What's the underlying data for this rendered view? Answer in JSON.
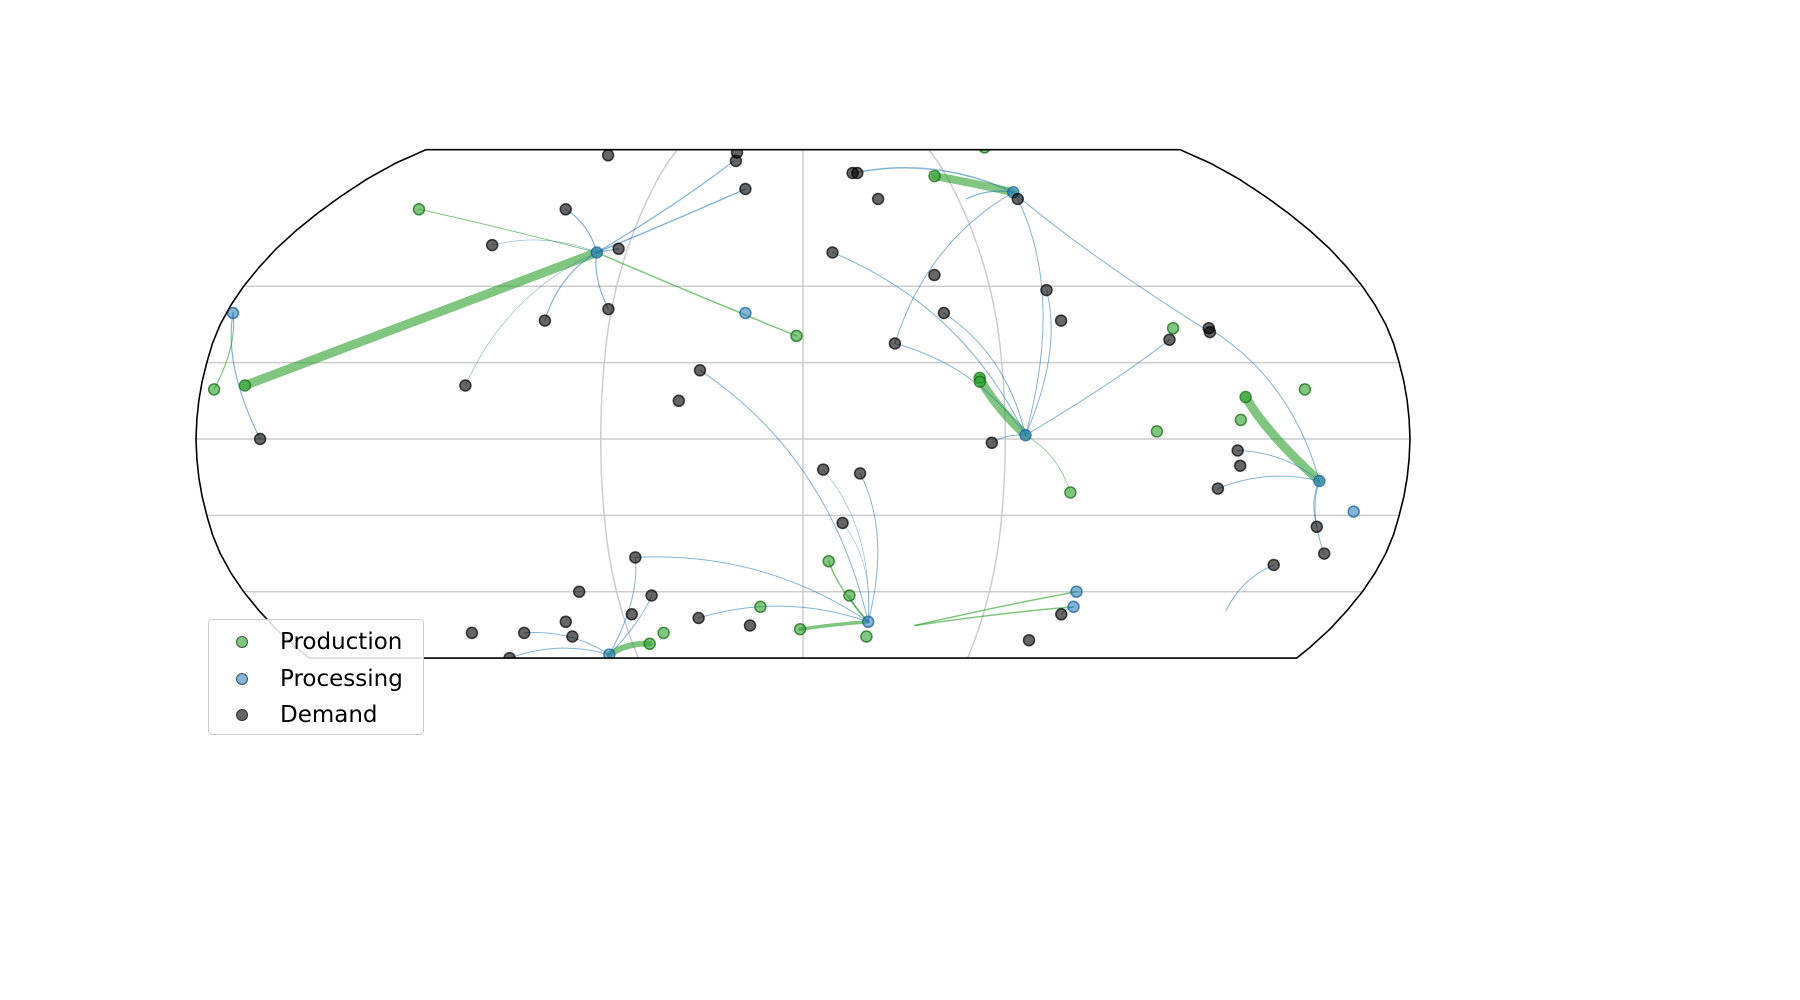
{
  "colors": {
    "production": "#2ca02c",
    "processing": "#1f77b4",
    "demand": "#000000",
    "graticule": "#cccccc",
    "outline": "#000000"
  },
  "legend": {
    "items": [
      {
        "key": "production",
        "label": "Production",
        "color": "#2ca02c"
      },
      {
        "key": "processing",
        "label": "Processing",
        "color": "#1f77b4"
      },
      {
        "key": "demand",
        "label": "Demand",
        "color": "#000000"
      }
    ]
  },
  "map": {
    "projection": "Robinson",
    "lon_range": [
      -180,
      180
    ],
    "lat_range": [
      -58,
      80
    ],
    "graticule_lon": [
      -60,
      0,
      60
    ],
    "graticule_lat": [
      -40,
      -20,
      0,
      20,
      40
    ]
  },
  "nodes": {
    "production": [
      [
        -144,
        61
      ],
      [
        -176,
        13
      ],
      [
        -167,
        14
      ],
      [
        -2,
        27
      ],
      [
        -48,
        -51
      ],
      [
        88,
        81
      ],
      [
        -54,
        -54
      ],
      [
        114,
        29
      ],
      [
        53,
        16
      ],
      [
        132,
        11
      ],
      [
        8,
        -32
      ],
      [
        15,
        -41
      ],
      [
        -14,
        -44
      ],
      [
        150,
        13
      ],
      [
        105,
        2
      ],
      [
        130,
        5
      ],
      [
        -1,
        -50
      ],
      [
        22,
        -52
      ],
      [
        55,
        71
      ],
      [
        80,
        -14
      ],
      [
        53,
        15
      ]
    ],
    "processing": [
      [
        -70,
        49
      ],
      [
        -178,
        33
      ],
      [
        -18,
        33
      ],
      [
        166,
        -19
      ],
      [
        83,
        66
      ],
      [
        22,
        -48
      ],
      [
        89,
        -44
      ],
      [
        66,
        1
      ],
      [
        154,
        -11
      ],
      [
        88,
        -40
      ],
      [
        -70,
        -57
      ]
    ],
    "demand": [
      [
        -90,
        78
      ],
      [
        -89,
        61
      ],
      [
        -107,
        51
      ],
      [
        -63,
        50
      ],
      [
        -61,
        34
      ],
      [
        -80,
        31
      ],
      [
        -101,
        14
      ],
      [
        -31,
        18
      ],
      [
        -37,
        10
      ],
      [
        -31,
        79
      ],
      [
        -30,
        76
      ],
      [
        -23,
        67
      ],
      [
        21,
        72
      ],
      [
        23,
        72
      ],
      [
        29,
        64
      ],
      [
        10,
        49
      ],
      [
        43,
        43
      ],
      [
        44,
        33
      ],
      [
        28,
        25
      ],
      [
        83,
        64
      ],
      [
        78,
        39
      ],
      [
        80,
        31
      ],
      [
        112,
        26
      ],
      [
        125,
        29
      ],
      [
        125,
        28
      ],
      [
        56,
        -1
      ],
      [
        129,
        -3
      ],
      [
        6,
        -8
      ],
      [
        17,
        -9
      ],
      [
        12,
        -22
      ],
      [
        124,
        -13
      ],
      [
        130,
        -7
      ],
      [
        156,
        -23
      ],
      [
        161,
        -30
      ],
      [
        147,
        -33
      ],
      [
        -52,
        -31
      ],
      [
        -72,
        -40
      ],
      [
        -49,
        -41
      ],
      [
        -80,
        -48
      ],
      [
        -96,
        -51
      ],
      [
        -80,
        -52
      ],
      [
        -114,
        -51
      ],
      [
        -107,
        -58
      ],
      [
        -35,
        -47
      ],
      [
        -57,
        -46
      ],
      [
        -18,
        -49
      ],
      [
        14,
        -60
      ],
      [
        86,
        -46
      ],
      [
        79,
        -53
      ],
      [
        -161,
        0
      ]
    ]
  },
  "flows": [
    {
      "kind": "production",
      "from": [
        -167,
        14
      ],
      "to": [
        -70,
        49
      ],
      "weight": 9
    },
    {
      "kind": "production",
      "from": [
        -144,
        61
      ],
      "to": [
        -70,
        49
      ],
      "weight": 1
    },
    {
      "kind": "production",
      "from": [
        -70,
        49
      ],
      "to": [
        -2,
        27
      ],
      "weight": 1.5
    },
    {
      "kind": "production",
      "from": [
        -176,
        13
      ],
      "to": [
        -178,
        33
      ],
      "weight": 1.2
    },
    {
      "kind": "production",
      "from": [
        53,
        16
      ],
      "to": [
        66,
        1
      ],
      "weight": 9
    },
    {
      "kind": "production",
      "from": [
        132,
        11
      ],
      "to": [
        154,
        -11
      ],
      "weight": 9
    },
    {
      "kind": "production",
      "from": [
        55,
        71
      ],
      "to": [
        83,
        66
      ],
      "weight": 8
    },
    {
      "kind": "production",
      "from": [
        -54,
        -54
      ],
      "to": [
        -70,
        -57
      ],
      "weight": 6
    },
    {
      "kind": "production",
      "from": [
        -1,
        -50
      ],
      "to": [
        22,
        -48
      ],
      "weight": 3.5
    },
    {
      "kind": "production",
      "from": [
        8,
        -32
      ],
      "to": [
        22,
        -48
      ],
      "weight": 1.5
    },
    {
      "kind": "production",
      "from": [
        15,
        -41
      ],
      "to": [
        22,
        -48
      ],
      "weight": 1.5
    },
    {
      "kind": "production",
      "from": [
        38,
        -49
      ],
      "to": [
        89,
        -44
      ],
      "weight": 1.5
    },
    {
      "kind": "production",
      "from": [
        38,
        -49
      ],
      "to": [
        88,
        -40
      ],
      "weight": 1.5
    },
    {
      "kind": "production",
      "from": [
        80,
        -14
      ],
      "to": [
        66,
        1
      ],
      "weight": 0.8
    },
    {
      "kind": "processing",
      "from": [
        -70,
        49
      ],
      "to": [
        -89,
        61
      ],
      "weight": 1.2
    },
    {
      "kind": "processing",
      "from": [
        -70,
        49
      ],
      "to": [
        -63,
        50
      ],
      "weight": 1.2
    },
    {
      "kind": "processing",
      "from": [
        -70,
        49
      ],
      "to": [
        -61,
        34
      ],
      "weight": 1.2
    },
    {
      "kind": "processing",
      "from": [
        -70,
        49
      ],
      "to": [
        -80,
        31
      ],
      "weight": 1.2
    },
    {
      "kind": "processing",
      "from": [
        -70,
        49
      ],
      "to": [
        -31,
        76
      ],
      "weight": 1.2
    },
    {
      "kind": "processing",
      "from": [
        -70,
        49
      ],
      "to": [
        -23,
        67
      ],
      "weight": 1.5
    },
    {
      "kind": "processing",
      "from": [
        -70,
        49
      ],
      "to": [
        -101,
        14
      ],
      "weight": 0.6
    },
    {
      "kind": "processing",
      "from": [
        -70,
        49
      ],
      "to": [
        -107,
        51
      ],
      "weight": 0.6
    },
    {
      "kind": "processing",
      "from": [
        -178,
        33
      ],
      "to": [
        -161,
        0
      ],
      "weight": 1.2
    },
    {
      "kind": "processing",
      "from": [
        83,
        66
      ],
      "to": [
        21,
        72
      ],
      "weight": 1.5
    },
    {
      "kind": "processing",
      "from": [
        83,
        66
      ],
      "to": [
        28,
        25
      ],
      "weight": 1
    },
    {
      "kind": "processing",
      "from": [
        83,
        66
      ],
      "to": [
        63,
        64
      ],
      "weight": 1.2
    },
    {
      "kind": "processing",
      "from": [
        83,
        66
      ],
      "to": [
        125,
        28
      ],
      "weight": 1
    },
    {
      "kind": "processing",
      "from": [
        66,
        1
      ],
      "to": [
        10,
        49
      ],
      "weight": 1
    },
    {
      "kind": "processing",
      "from": [
        66,
        1
      ],
      "to": [
        44,
        33
      ],
      "weight": 1
    },
    {
      "kind": "processing",
      "from": [
        66,
        1
      ],
      "to": [
        28,
        25
      ],
      "weight": 1
    },
    {
      "kind": "processing",
      "from": [
        66,
        1
      ],
      "to": [
        83,
        64
      ],
      "weight": 1
    },
    {
      "kind": "processing",
      "from": [
        66,
        1
      ],
      "to": [
        78,
        39
      ],
      "weight": 1
    },
    {
      "kind": "processing",
      "from": [
        66,
        1
      ],
      "to": [
        112,
        26
      ],
      "weight": 1
    },
    {
      "kind": "processing",
      "from": [
        66,
        1
      ],
      "to": [
        56,
        -1
      ],
      "weight": 1
    },
    {
      "kind": "processing",
      "from": [
        154,
        -11
      ],
      "to": [
        129,
        -3
      ],
      "weight": 1
    },
    {
      "kind": "processing",
      "from": [
        154,
        -11
      ],
      "to": [
        124,
        -13
      ],
      "weight": 1
    },
    {
      "kind": "processing",
      "from": [
        154,
        -11
      ],
      "to": [
        161,
        -30
      ],
      "weight": 1
    },
    {
      "kind": "processing",
      "from": [
        154,
        -11
      ],
      "to": [
        156,
        -23
      ],
      "weight": 1
    },
    {
      "kind": "processing",
      "from": [
        154,
        -11
      ],
      "to": [
        125,
        29
      ],
      "weight": 1
    },
    {
      "kind": "processing",
      "from": [
        22,
        -48
      ],
      "to": [
        -31,
        18
      ],
      "weight": 1
    },
    {
      "kind": "processing",
      "from": [
        22,
        -48
      ],
      "to": [
        -52,
        -31
      ],
      "weight": 1
    },
    {
      "kind": "processing",
      "from": [
        22,
        -48
      ],
      "to": [
        6,
        -8
      ],
      "weight": 0.6
    },
    {
      "kind": "processing",
      "from": [
        22,
        -48
      ],
      "to": [
        17,
        -9
      ],
      "weight": 1
    },
    {
      "kind": "processing",
      "from": [
        22,
        -48
      ],
      "to": [
        12,
        -22
      ],
      "weight": 0.6
    },
    {
      "kind": "processing",
      "from": [
        22,
        -48
      ],
      "to": [
        -35,
        -47
      ],
      "weight": 1
    },
    {
      "kind": "processing",
      "from": [
        -70,
        -57
      ],
      "to": [
        -52,
        -31
      ],
      "weight": 1
    },
    {
      "kind": "processing",
      "from": [
        -70,
        -57
      ],
      "to": [
        -49,
        -41
      ],
      "weight": 1
    },
    {
      "kind": "processing",
      "from": [
        -70,
        -57
      ],
      "to": [
        -107,
        -58
      ],
      "weight": 1
    },
    {
      "kind": "processing",
      "from": [
        -70,
        -57
      ],
      "to": [
        -96,
        -51
      ],
      "weight": 1
    },
    {
      "kind": "processing",
      "from": [
        89,
        -44
      ],
      "to": [
        86,
        -46
      ],
      "weight": 1
    },
    {
      "kind": "processing",
      "from": [
        147,
        -33
      ],
      "to": [
        140,
        -45
      ],
      "weight": 1
    }
  ]
}
